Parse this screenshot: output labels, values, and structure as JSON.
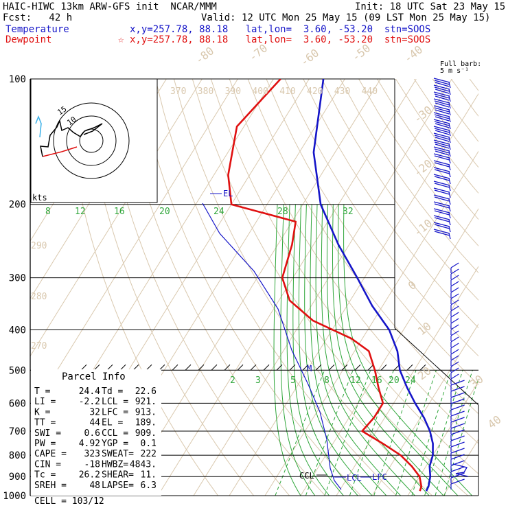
{
  "header": {
    "line1_left": "HAIC-HIWC 13km ARW-GFS init  NCAR/MMM",
    "line1_right": "Init: 18 UTC Sat 23 May 15",
    "line2_left": "Fcst:   42 h",
    "line2_right": "Valid: 12 UTC Mon 25 May 15 (09 LST Mon 25 May 15)",
    "temp_label": "Temperature",
    "temp_loc": "x,y=257.78, 88.18   lat,lon=  3.60, -53.20  stn=SOOS",
    "dew_label": "Dewpoint",
    "dew_loc": "x,y=257.78, 88.18   lat,lon=  3.60, -53.20  stn=SOOS",
    "dew_star": "☆"
  },
  "chart_data": {
    "type": "line",
    "title": "",
    "ylabel_unit": "hPa",
    "pressure_levels": [
      100,
      200,
      300,
      400,
      500,
      600,
      700,
      800,
      900,
      1000
    ],
    "pressure_labels": [
      "100",
      "200",
      "300",
      "400",
      "500",
      "600",
      "700",
      "800",
      "900",
      "1000"
    ],
    "isotherms_top": [
      "-80",
      "-70",
      "-60",
      "-50",
      "-40"
    ],
    "isotherms_right": [
      "-30",
      "-20",
      "-10",
      "0",
      "10",
      "20",
      "30",
      "40"
    ],
    "theta_labels": [
      "370",
      "380",
      "390",
      "400",
      "410",
      "420",
      "430",
      "440"
    ],
    "theta_left_labels": [
      "290",
      "280",
      "270"
    ],
    "mixing_labels_upper": [
      "8",
      "12",
      "16",
      "20",
      "24",
      "28",
      "32"
    ],
    "mixing_labels_lower": [
      "2",
      "3",
      "5",
      "8",
      "12",
      "16",
      "20",
      "24"
    ],
    "barb_legend": "Full barb:\n 5 m s⁻¹",
    "hodograph": {
      "unit_label": "kts",
      "ring_labels": [
        "15",
        "10"
      ]
    },
    "series": [
      {
        "name": "Temperature",
        "color": "#1515c8",
        "points": [
          [
            100,
            -76
          ],
          [
            150,
            -66
          ],
          [
            200,
            -55
          ],
          [
            250,
            -43
          ],
          [
            300,
            -32
          ],
          [
            350,
            -23
          ],
          [
            400,
            -14
          ],
          [
            450,
            -8
          ],
          [
            500,
            -4
          ],
          [
            550,
            1
          ],
          [
            600,
            6
          ],
          [
            650,
            11
          ],
          [
            700,
            15
          ],
          [
            750,
            18
          ],
          [
            800,
            20
          ],
          [
            850,
            21
          ],
          [
            900,
            23
          ],
          [
            950,
            24.2
          ],
          [
            975,
            24.4
          ]
        ]
      },
      {
        "name": "Dewpoint",
        "color": "#e01010",
        "points": [
          [
            100,
            -88
          ],
          [
            130,
            -92
          ],
          [
            170,
            -86
          ],
          [
            200,
            -80
          ],
          [
            220,
            -59
          ],
          [
            250,
            -56
          ],
          [
            300,
            -53
          ],
          [
            340,
            -47
          ],
          [
            380,
            -37
          ],
          [
            420,
            -23
          ],
          [
            450,
            -16
          ],
          [
            500,
            -11
          ],
          [
            550,
            -7
          ],
          [
            600,
            -3
          ],
          [
            650,
            -3
          ],
          [
            700,
            -4
          ],
          [
            750,
            4
          ],
          [
            800,
            11
          ],
          [
            850,
            16
          ],
          [
            900,
            20
          ],
          [
            950,
            22.2
          ],
          [
            975,
            22.6
          ]
        ]
      }
    ],
    "annotations": [
      "EL",
      "M",
      "CCL",
      "LCL",
      "LFC"
    ],
    "parcel_info": {
      "title": "Parcel Info",
      "rows": [
        [
          "T  =",
          "24.4",
          "Td =",
          "22.6"
        ],
        [
          "LI =",
          "-2.2",
          "LCL =",
          "921."
        ],
        [
          "K  =",
          "32",
          "LFC =",
          "913."
        ],
        [
          "TT =",
          "44",
          "EL =",
          "189."
        ],
        [
          "SWI =",
          "0.6",
          "CCL =",
          "909."
        ],
        [
          "PW =",
          "4.92",
          "YGP =",
          "0.1"
        ],
        [
          "CAPE =",
          "323",
          "SWEAT=",
          "222"
        ],
        [
          "CIN =",
          "-18",
          "HWBZ=",
          "4843."
        ],
        [
          "Tc =",
          "26.2",
          "SHEAR=",
          "11."
        ],
        [
          "SREH =",
          "48",
          "LAPSE=",
          "6.3"
        ]
      ],
      "cell": "CELL = 103/12"
    }
  }
}
